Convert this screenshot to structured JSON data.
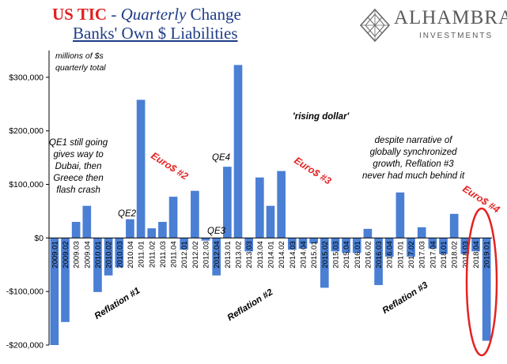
{
  "title": {
    "line1_prefix": "US TIC",
    "line1_sep": " - ",
    "line1_italic": "Quarterly",
    "line1_suffix": " Change",
    "line2": "Banks' Own $ Liabilities"
  },
  "logo": {
    "name": "ALHAMBRA",
    "sub": "INVESTMENTS",
    "icon": "alhambra-lattice-diamond-icon"
  },
  "units_note": {
    "line1": "millions of $s",
    "line2": "quarterly total"
  },
  "annotations": {
    "qe1_note": [
      "QE1 still going",
      "gives way to",
      "Dubai, then",
      "Greece then",
      "flash crash"
    ],
    "qe2": "QE2",
    "qe3": "QE3",
    "qe4": "QE4",
    "rising_dollar": "'rising dollar'",
    "narrative_note": [
      "despite narrative of",
      "globally synchronized",
      "growth, Reflation #3",
      "never had much behind it"
    ],
    "euro2": "Euro$ #2",
    "euro3": "Euro$ #3",
    "euro4": "Euro$ #4",
    "reflation1": "Reflation #1",
    "reflation2": "Reflation #2",
    "reflation3": "Reflation #3"
  },
  "colors": {
    "bar": "#4a7fd4",
    "highlight": "#e52222",
    "title_blue": "#1f3c88",
    "title_red": "#e02020",
    "axis": "#000000"
  },
  "chart_data": {
    "type": "bar",
    "title": "US TIC - Quarterly Change Banks' Own $ Liabilities",
    "units": "millions of $s quarterly total",
    "ylim": [
      -200000,
      350000
    ],
    "yticks": [
      -200000,
      -100000,
      0,
      100000,
      200000,
      300000
    ],
    "ytick_labels": [
      "-$200,000",
      "-$100,000",
      "$0",
      "$100,000",
      "$200,000",
      "$300,000"
    ],
    "grid": false,
    "categories": [
      "2009.01",
      "2009.02",
      "2009.03",
      "2009.04",
      "2010.01",
      "2010.02",
      "2010.03",
      "2010.04",
      "2011.01",
      "2011.02",
      "2011.03",
      "2011.04",
      "2012.01",
      "2012.02",
      "2012.03",
      "2012.04",
      "2013.01",
      "2013.02",
      "2013.03",
      "2013.04",
      "2014.01",
      "2014.02",
      "2014.03",
      "2014.04",
      "2015.01",
      "2015.02",
      "2015.03",
      "2015.04",
      "2016.01",
      "2016.02",
      "2016.03",
      "2016.04",
      "2017.01",
      "2017.02",
      "2017.03",
      "2017.04",
      "2018.01",
      "2018.02",
      "2018.03",
      "2018.04",
      "2019.01"
    ],
    "values": [
      -200000,
      -157000,
      30000,
      60000,
      -101000,
      -70000,
      -55000,
      35000,
      258000,
      18000,
      30000,
      77000,
      -22000,
      88000,
      -5000,
      -70000,
      133000,
      323000,
      -25000,
      113000,
      60000,
      125000,
      -22000,
      -20000,
      -10000,
      -93000,
      -25000,
      -28000,
      -28000,
      17000,
      -88000,
      -35000,
      85000,
      -35000,
      20000,
      -20000,
      -30000,
      45000,
      -30000,
      -25000,
      -192000
    ]
  }
}
